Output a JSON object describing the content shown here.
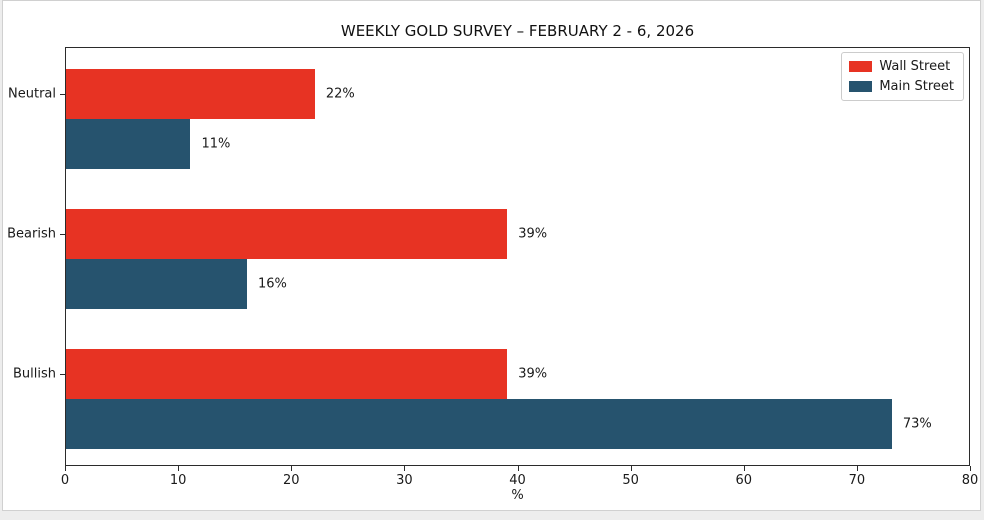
{
  "figure": {
    "page_background": "#ededed",
    "figure_background": "#ffffff",
    "frame_color": "#2b2b2b",
    "text_color": "#1a1a1a"
  },
  "chart_data": {
    "type": "bar",
    "orientation": "horizontal",
    "title": "WEEKLY GOLD SURVEY – FEBRUARY 2 - 6, 2026",
    "categories": [
      "Neutral",
      "Bearish",
      "Bullish"
    ],
    "series": [
      {
        "name": "Wall Street",
        "color": "#e73323",
        "values": [
          22,
          39,
          39
        ],
        "value_labels": [
          "22%",
          "39%",
          "39%"
        ]
      },
      {
        "name": "Main Street",
        "color": "#26536e",
        "values": [
          11,
          16,
          73
        ],
        "value_labels": [
          "11%",
          "16%",
          "73%"
        ]
      }
    ],
    "xlabel": "%",
    "xlim": [
      0,
      80
    ],
    "xticks": [
      0,
      10,
      20,
      30,
      40,
      50,
      60,
      70,
      80
    ],
    "legend": {
      "position": "upper right",
      "entries": [
        "Wall Street",
        "Main Street"
      ]
    },
    "grid": false
  }
}
